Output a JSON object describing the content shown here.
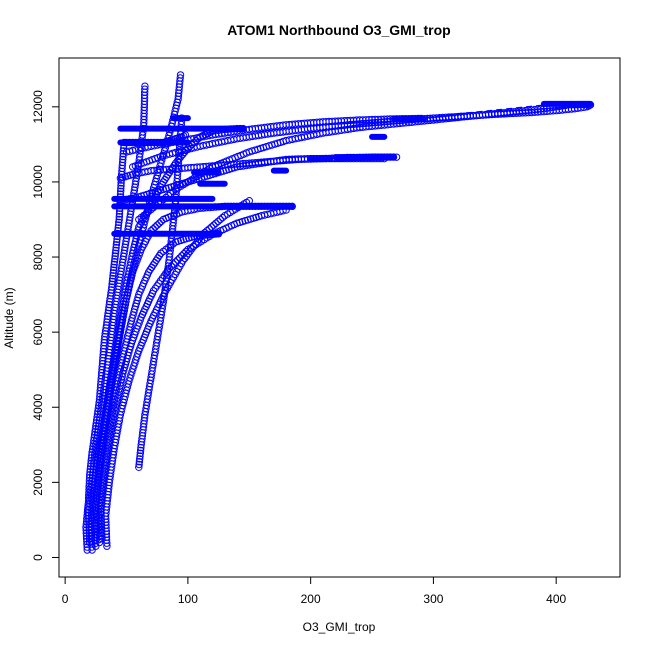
{
  "chart_data": {
    "type": "scatter",
    "title": "ATOM1 Northbound O3_GMI_trop",
    "xlabel": "O3_GMI_trop",
    "ylabel": "Altitude (m)",
    "xlim": [
      -5,
      452
    ],
    "ylim": [
      -520,
      13300
    ],
    "xticks": [
      0,
      100,
      200,
      300,
      400
    ],
    "yticks": [
      0,
      2000,
      4000,
      6000,
      8000,
      10000,
      12000
    ],
    "grid": false,
    "marker": "open-circle",
    "color": "#0000ff",
    "point_density": "very high; profiles overlap into solid bands",
    "traces": [
      {
        "x": [
          18,
          17,
          19,
          20,
          22,
          25,
          28,
          30,
          32,
          35,
          38,
          40,
          42,
          44,
          45,
          46,
          47,
          48,
          50,
          55,
          60,
          65,
          70,
          75,
          80,
          85,
          90,
          95,
          98
        ],
        "y": [
          200,
          800,
          1500,
          2200,
          2800,
          3500,
          4200,
          5000,
          5800,
          6500,
          7200,
          7800,
          8400,
          9000,
          9600,
          10200,
          10600,
          11050,
          11050,
          11050,
          11050,
          11050,
          11050,
          11050,
          11050,
          11100,
          11150,
          11200,
          11250
        ]
      },
      {
        "x": [
          22,
          21,
          23,
          26,
          30,
          34,
          38,
          42,
          46,
          50,
          55,
          60,
          70,
          80,
          90,
          100,
          110,
          120,
          130,
          140,
          145
        ],
        "y": [
          200,
          900,
          1700,
          2500,
          3300,
          4100,
          4900,
          5700,
          6500,
          7300,
          8100,
          8800,
          9400,
          10000,
          10500,
          10900,
          11200,
          11350,
          11400,
          11420,
          11420
        ]
      },
      {
        "x": [
          25,
          24,
          26,
          29,
          33,
          37,
          41,
          45,
          50,
          55,
          62,
          70,
          80,
          95,
          110,
          130,
          150,
          170,
          185
        ],
        "y": [
          300,
          1000,
          1800,
          2700,
          3600,
          4500,
          5300,
          6100,
          6900,
          7600,
          8200,
          8700,
          9000,
          9200,
          9300,
          9350,
          9350,
          9350,
          9350
        ]
      },
      {
        "x": [
          28,
          27,
          30,
          34,
          38,
          43,
          48,
          54,
          60,
          68,
          78,
          90,
          105,
          118,
          125
        ],
        "y": [
          400,
          1200,
          2000,
          2900,
          3800,
          4700,
          5500,
          6300,
          7000,
          7600,
          8100,
          8400,
          8550,
          8600,
          8620
        ]
      },
      {
        "x": [
          30,
          29,
          32,
          36,
          41,
          47,
          54,
          62,
          72,
          85,
          100,
          120,
          140,
          160,
          180
        ],
        "y": [
          500,
          1300,
          2200,
          3100,
          4000,
          4900,
          5700,
          6400,
          7100,
          7700,
          8200,
          8600,
          8900,
          9100,
          9250
        ]
      },
      {
        "x": [
          34,
          33,
          36,
          40,
          45,
          52,
          60,
          70,
          82,
          96,
          112,
          130,
          150
        ],
        "y": [
          300,
          1100,
          2000,
          2900,
          3800,
          4700,
          5500,
          6300,
          7100,
          7900,
          8600,
          9100,
          9500
        ]
      },
      {
        "x": [
          20,
          19,
          22,
          25,
          29,
          33,
          37,
          40,
          44,
          48,
          52,
          56,
          60,
          64,
          65
        ],
        "y": [
          400,
          1200,
          2100,
          3000,
          3900,
          4800,
          5700,
          6500,
          7300,
          8100,
          8900,
          9700,
          10500,
          11500,
          12550
        ]
      },
      {
        "x": [
          26,
          25,
          28,
          32,
          36,
          40,
          45,
          50,
          56,
          63,
          70,
          78,
          86,
          92,
          94
        ],
        "y": [
          600,
          1500,
          2400,
          3300,
          4200,
          5100,
          6000,
          6900,
          7800,
          8700,
          9600,
          10500,
          11400,
          12200,
          12850
        ]
      },
      {
        "x": [
          60,
          62,
          65,
          70,
          75,
          80,
          85,
          90,
          95
        ],
        "y": [
          2400,
          3000,
          3800,
          4800,
          5800,
          6800,
          8000,
          9500,
          11700
        ]
      },
      {
        "x": [
          45,
          55,
          70,
          90,
          110,
          130,
          150,
          170,
          190,
          210,
          230,
          250,
          270
        ],
        "y": [
          10100,
          10200,
          10300,
          10350,
          10400,
          10450,
          10500,
          10550,
          10600,
          10620,
          10650,
          10660,
          10660
        ]
      },
      {
        "x": [
          45,
          60,
          80,
          100,
          120,
          140,
          160,
          180,
          200,
          220,
          240,
          260
        ],
        "y": [
          9500,
          9600,
          9800,
          10000,
          10200,
          10400,
          10500,
          10600,
          10620,
          10620,
          10620,
          10620
        ]
      },
      {
        "x": [
          50,
          70,
          95,
          120,
          150,
          180,
          210,
          240,
          270,
          290
        ],
        "y": [
          10800,
          10950,
          11100,
          11250,
          11400,
          11520,
          11600,
          11650,
          11680,
          11690
        ]
      },
      {
        "x": [
          55,
          80,
          110,
          140,
          170,
          200,
          230,
          260,
          290,
          320,
          350,
          380,
          400,
          415,
          425,
          428,
          427
        ],
        "y": [
          10400,
          10700,
          10950,
          11150,
          11300,
          11420,
          11520,
          11600,
          11680,
          11740,
          11800,
          11850,
          11900,
          11950,
          12000,
          12050,
          12050
        ]
      },
      {
        "x": [
          60,
          90,
          120,
          150,
          180,
          210,
          240,
          270,
          300,
          330,
          360,
          390,
          410,
          420,
          425
        ],
        "y": [
          9000,
          9800,
          10400,
          10800,
          11100,
          11300,
          11450,
          11550,
          11650,
          11750,
          11850,
          11950,
          12050,
          12060,
          12060
        ]
      }
    ],
    "segments": [
      {
        "x": [
          45,
          100
        ],
        "y": [
          11050,
          11050
        ]
      },
      {
        "x": [
          45,
          145
        ],
        "y": [
          11420,
          11420
        ]
      },
      {
        "x": [
          40,
          185
        ],
        "y": [
          9350,
          9350
        ]
      },
      {
        "x": [
          40,
          125
        ],
        "y": [
          8620,
          8620
        ]
      },
      {
        "x": [
          40,
          120
        ],
        "y": [
          9550,
          9550
        ]
      },
      {
        "x": [
          105,
          125
        ],
        "y": [
          10250,
          10250
        ]
      },
      {
        "x": [
          110,
          130
        ],
        "y": [
          9950,
          9950
        ]
      },
      {
        "x": [
          88,
          100
        ],
        "y": [
          11700,
          11700
        ]
      },
      {
        "x": [
          170,
          180
        ],
        "y": [
          10300,
          10300
        ]
      },
      {
        "x": [
          200,
          215
        ],
        "y": [
          10620,
          10620
        ]
      },
      {
        "x": [
          220,
          268
        ],
        "y": [
          10660,
          10660
        ]
      },
      {
        "x": [
          250,
          260
        ],
        "y": [
          11200,
          11200
        ]
      },
      {
        "x": [
          268,
          292
        ],
        "y": [
          11680,
          11680
        ]
      },
      {
        "x": [
          390,
          428
        ],
        "y": [
          12080,
          12080
        ]
      }
    ],
    "connector": {
      "x": [
        270,
        330,
        390
      ],
      "y": [
        11680,
        11850,
        12050
      ]
    }
  }
}
